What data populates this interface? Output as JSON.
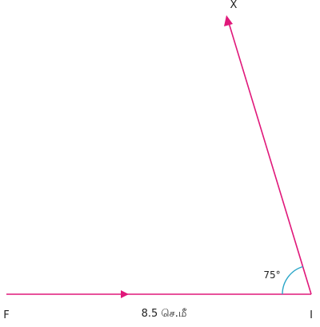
{
  "diagram": {
    "points": {
      "f": "F",
      "i": "I",
      "x": "X"
    },
    "base_length_label": "8.5 செ.மீ",
    "angle_label": "75°",
    "colors": {
      "ray": "#e0187a",
      "angle_arc": "#2aa6c8",
      "text": "#222222"
    }
  }
}
